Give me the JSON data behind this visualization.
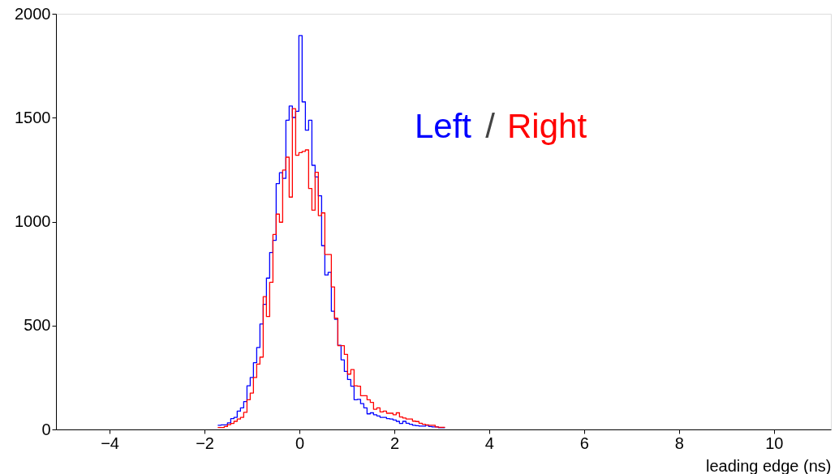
{
  "chart_data": {
    "type": "histogram",
    "xlabel": "leading edge (ns)",
    "bins": [
      -1.721,
      -1.653,
      -1.584,
      -1.516,
      -1.447,
      -1.379,
      -1.311,
      -1.242,
      -1.174,
      -1.105,
      -1.037,
      -0.969,
      -0.9,
      -0.832,
      -0.763,
      -0.695,
      -0.627,
      -0.558,
      -0.49,
      -0.421,
      -0.353,
      -0.285,
      -0.216,
      -0.148,
      -0.079,
      -0.011,
      0.057,
      0.126,
      0.194,
      0.263,
      0.331,
      0.399,
      0.468,
      0.536,
      0.605,
      0.673,
      0.741,
      0.81,
      0.878,
      0.947,
      1.015,
      1.083,
      1.152,
      1.22,
      1.289,
      1.357,
      1.425,
      1.494,
      1.562,
      1.631,
      1.699,
      1.767,
      1.836,
      1.904,
      1.973,
      2.041,
      2.109,
      2.178,
      2.246,
      2.315,
      2.383,
      2.451,
      2.52,
      2.588,
      2.657,
      2.725,
      2.793,
      2.862,
      2.93,
      2.999,
      3.067
    ],
    "series": [
      {
        "name": "Left",
        "color": "#0000ff",
        "values": [
          20,
          22,
          22,
          32,
          52,
          58,
          88,
          104,
          134,
          210,
          250,
          321,
          394,
          507,
          602,
          728,
          851,
          910,
          1183,
          1235,
          1208,
          1488,
          1556,
          1501,
          1531,
          1895,
          1576,
          1440,
          1488,
          1271,
          1215,
          1124,
          884,
          743,
          756,
          569,
          530,
          405,
          335,
          279,
          240,
          208,
          143,
          145,
          124,
          104,
          75,
          80,
          71,
          65,
          58,
          58,
          52,
          50,
          45,
          39,
          29,
          39,
          30,
          25,
          20,
          18,
          16,
          16,
          20,
          14,
          12,
          12,
          8,
          8
        ]
      },
      {
        "name": "Right",
        "color": "#ff0000",
        "values": [
          9,
          9,
          14,
          23,
          29,
          39,
          50,
          58,
          82,
          143,
          175,
          250,
          314,
          348,
          639,
          543,
          708,
          938,
          1036,
          997,
          1248,
          1310,
          1118,
          1543,
          1319,
          1332,
          1338,
          1345,
          1159,
          1055,
          1237,
          1029,
          1042,
          842,
          842,
          686,
          535,
          403,
          403,
          361,
          266,
          288,
          210,
          208,
          162,
          162,
          143,
          130,
          97,
          104,
          84,
          88,
          78,
          78,
          71,
          80,
          60,
          55,
          50,
          50,
          40,
          38,
          30,
          25,
          22,
          20,
          20,
          12,
          10,
          10
        ]
      }
    ],
    "xlim": [
      -5.13,
      11.2
    ],
    "xticks": [
      -4,
      -2,
      0,
      2,
      4,
      6,
      8,
      10
    ],
    "ylim": [
      0,
      2000
    ],
    "yticks": [
      0,
      500,
      1000,
      1500,
      2000
    ],
    "grid": false,
    "annotations": [
      "/"
    ]
  }
}
